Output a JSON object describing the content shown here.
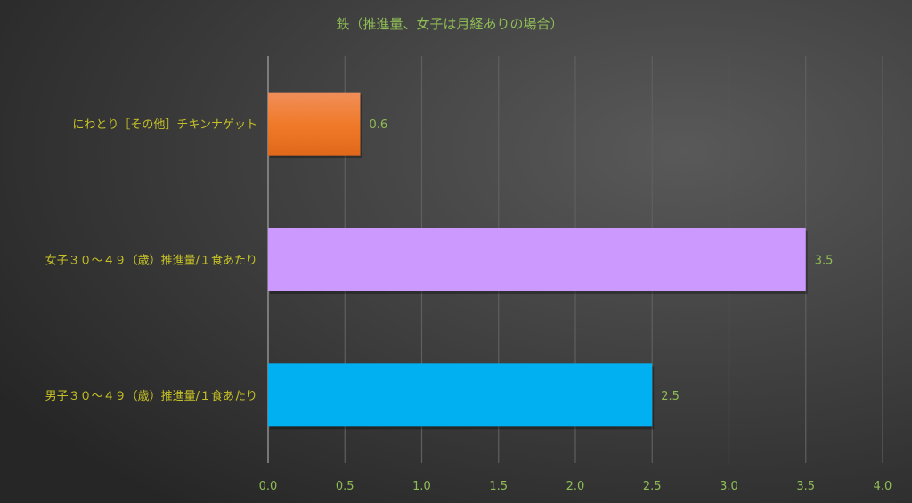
{
  "chart_data": {
    "type": "bar",
    "orientation": "horizontal",
    "title": "鉄（推進量、女子は月経ありの場合）",
    "categories": [
      "にわとり［その他］チキンナゲット",
      "女子３０～４９（歳）推進量/１食あたり",
      "男子３０～４９（歳）推進量/１食あたり"
    ],
    "values": [
      0.6,
      3.5,
      2.5
    ],
    "data_labels": [
      "0.6",
      "3.5",
      "2.5"
    ],
    "bar_colors": [
      "#ee7425",
      "#cc99ff",
      "#00b0f0"
    ],
    "xlim": [
      0,
      4.0
    ],
    "x_ticks": [
      "0.0",
      "0.5",
      "1.0",
      "1.5",
      "2.0",
      "2.5",
      "3.0",
      "3.5",
      "4.0"
    ],
    "grid": "vertical",
    "legend": "none",
    "colors": {
      "title": "#8fbd55",
      "tick_labels": "#8fbd55",
      "data_labels": "#8fbd55",
      "category_labels": "#c6c226",
      "background": "#3a3a3a"
    }
  }
}
